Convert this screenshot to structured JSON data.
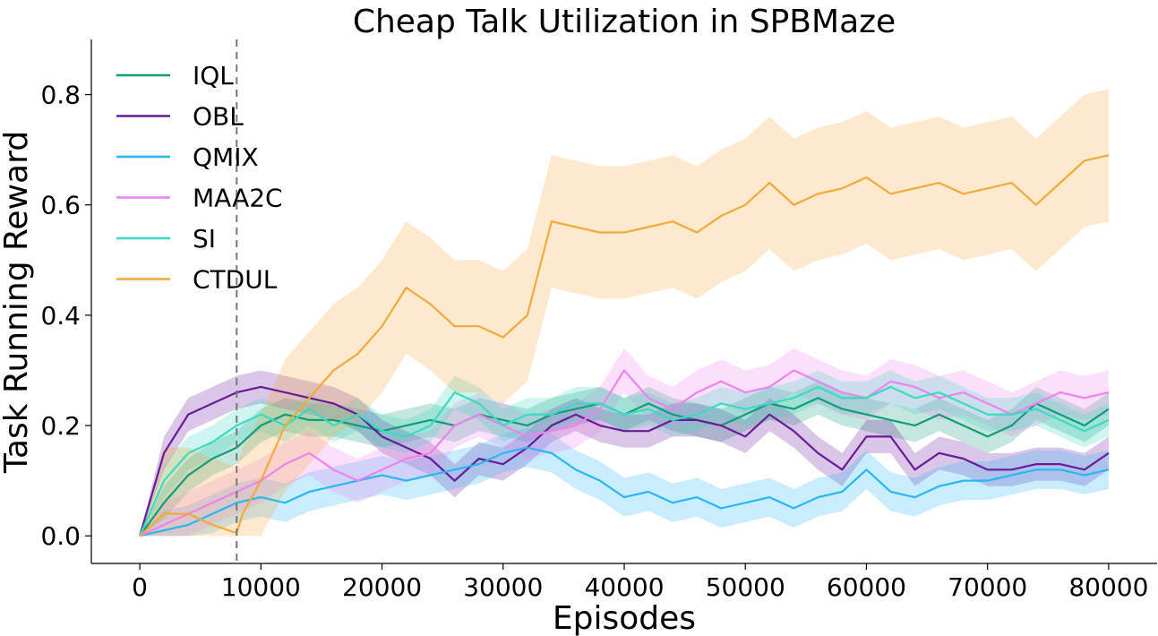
{
  "chart_data": {
    "type": "line",
    "title": "Cheap Talk Utilization in SPBMaze",
    "xlabel": "Episodes",
    "ylabel": "Task Running Reward",
    "xlim": [
      -4000,
      84000
    ],
    "ylim": [
      -0.05,
      0.9
    ],
    "xticks": [
      0,
      10000,
      20000,
      30000,
      40000,
      50000,
      60000,
      70000,
      80000
    ],
    "xtick_labels": [
      "0",
      "10000",
      "20000",
      "30000",
      "40000",
      "50000",
      "60000",
      "70000",
      "80000"
    ],
    "yticks": [
      0.0,
      0.2,
      0.4,
      0.6,
      0.8
    ],
    "ytick_labels": [
      "0.0",
      "0.2",
      "0.4",
      "0.6",
      "0.8"
    ],
    "vline_x": 8000,
    "legend_position": "top-left",
    "series": [
      {
        "name": "IQL",
        "color": "#0f9d7a",
        "x": [
          0,
          2000,
          4000,
          6000,
          8000,
          10000,
          12000,
          14000,
          16000,
          18000,
          20000,
          22000,
          24000,
          26000,
          28000,
          30000,
          32000,
          34000,
          36000,
          38000,
          40000,
          42000,
          44000,
          46000,
          48000,
          50000,
          52000,
          54000,
          56000,
          58000,
          60000,
          62000,
          64000,
          66000,
          68000,
          70000,
          72000,
          74000,
          76000,
          78000,
          80000
        ],
        "y": [
          0.0,
          0.06,
          0.11,
          0.14,
          0.16,
          0.2,
          0.22,
          0.21,
          0.21,
          0.2,
          0.19,
          0.2,
          0.21,
          0.2,
          0.22,
          0.21,
          0.2,
          0.22,
          0.23,
          0.24,
          0.22,
          0.24,
          0.22,
          0.21,
          0.2,
          0.22,
          0.24,
          0.23,
          0.25,
          0.23,
          0.22,
          0.21,
          0.2,
          0.22,
          0.2,
          0.18,
          0.2,
          0.24,
          0.22,
          0.2,
          0.23
        ],
        "band": 0.03
      },
      {
        "name": "OBL",
        "color": "#6a1b9a",
        "x": [
          0,
          2000,
          4000,
          6000,
          8000,
          10000,
          12000,
          14000,
          16000,
          18000,
          20000,
          22000,
          24000,
          26000,
          28000,
          30000,
          32000,
          34000,
          36000,
          38000,
          40000,
          42000,
          44000,
          46000,
          48000,
          50000,
          52000,
          54000,
          56000,
          58000,
          60000,
          62000,
          64000,
          66000,
          68000,
          70000,
          72000,
          74000,
          76000,
          78000,
          80000
        ],
        "y": [
          0.0,
          0.15,
          0.22,
          0.24,
          0.26,
          0.27,
          0.26,
          0.25,
          0.24,
          0.22,
          0.18,
          0.16,
          0.14,
          0.1,
          0.14,
          0.13,
          0.16,
          0.2,
          0.22,
          0.2,
          0.19,
          0.19,
          0.21,
          0.21,
          0.2,
          0.18,
          0.22,
          0.19,
          0.15,
          0.12,
          0.18,
          0.18,
          0.12,
          0.15,
          0.14,
          0.12,
          0.12,
          0.13,
          0.13,
          0.12,
          0.15
        ],
        "band": 0.03
      },
      {
        "name": "QMIX",
        "color": "#29b6f6",
        "x": [
          0,
          2000,
          4000,
          6000,
          8000,
          10000,
          12000,
          14000,
          16000,
          18000,
          20000,
          22000,
          24000,
          26000,
          28000,
          30000,
          32000,
          34000,
          36000,
          38000,
          40000,
          42000,
          44000,
          46000,
          48000,
          50000,
          52000,
          54000,
          56000,
          58000,
          60000,
          62000,
          64000,
          66000,
          68000,
          70000,
          72000,
          74000,
          76000,
          78000,
          80000
        ],
        "y": [
          0.0,
          0.01,
          0.02,
          0.04,
          0.06,
          0.07,
          0.06,
          0.08,
          0.09,
          0.1,
          0.11,
          0.1,
          0.11,
          0.12,
          0.13,
          0.15,
          0.16,
          0.15,
          0.12,
          0.1,
          0.07,
          0.08,
          0.06,
          0.07,
          0.05,
          0.06,
          0.07,
          0.05,
          0.07,
          0.08,
          0.12,
          0.08,
          0.07,
          0.09,
          0.1,
          0.1,
          0.11,
          0.12,
          0.12,
          0.11,
          0.12
        ],
        "band": 0.035
      },
      {
        "name": "MAA2C",
        "color": "#ee82ee",
        "x": [
          0,
          2000,
          4000,
          6000,
          8000,
          10000,
          12000,
          14000,
          16000,
          18000,
          20000,
          22000,
          24000,
          26000,
          28000,
          30000,
          32000,
          34000,
          36000,
          38000,
          40000,
          42000,
          44000,
          46000,
          48000,
          50000,
          52000,
          54000,
          56000,
          58000,
          60000,
          62000,
          64000,
          66000,
          68000,
          70000,
          72000,
          74000,
          76000,
          78000,
          80000
        ],
        "y": [
          0.0,
          0.02,
          0.04,
          0.06,
          0.08,
          0.1,
          0.13,
          0.15,
          0.12,
          0.1,
          0.12,
          0.14,
          0.15,
          0.2,
          0.22,
          0.2,
          0.18,
          0.19,
          0.2,
          0.23,
          0.3,
          0.25,
          0.23,
          0.26,
          0.28,
          0.26,
          0.27,
          0.3,
          0.28,
          0.26,
          0.25,
          0.28,
          0.27,
          0.25,
          0.26,
          0.24,
          0.22,
          0.24,
          0.26,
          0.25,
          0.26
        ],
        "band": 0.04
      },
      {
        "name": "SI",
        "color": "#3dd9c1",
        "x": [
          0,
          2000,
          4000,
          6000,
          8000,
          10000,
          12000,
          14000,
          16000,
          18000,
          20000,
          22000,
          24000,
          26000,
          28000,
          30000,
          32000,
          34000,
          36000,
          38000,
          40000,
          42000,
          44000,
          46000,
          48000,
          50000,
          52000,
          54000,
          56000,
          58000,
          60000,
          62000,
          64000,
          66000,
          68000,
          70000,
          72000,
          74000,
          76000,
          78000,
          80000
        ],
        "y": [
          0.0,
          0.1,
          0.15,
          0.17,
          0.2,
          0.22,
          0.2,
          0.23,
          0.2,
          0.22,
          0.19,
          0.18,
          0.2,
          0.26,
          0.24,
          0.2,
          0.22,
          0.22,
          0.24,
          0.24,
          0.22,
          0.23,
          0.21,
          0.22,
          0.24,
          0.23,
          0.24,
          0.25,
          0.27,
          0.25,
          0.25,
          0.27,
          0.25,
          0.26,
          0.24,
          0.22,
          0.22,
          0.23,
          0.21,
          0.19,
          0.21
        ],
        "band": 0.03
      },
      {
        "name": "CTDUL",
        "color": "#f4a93c",
        "x": [
          0,
          2000,
          4000,
          6000,
          8000,
          8500,
          10000,
          12000,
          14000,
          16000,
          18000,
          20000,
          22000,
          24000,
          26000,
          28000,
          30000,
          32000,
          34000,
          36000,
          38000,
          40000,
          42000,
          44000,
          46000,
          48000,
          50000,
          52000,
          54000,
          56000,
          58000,
          60000,
          62000,
          64000,
          66000,
          68000,
          70000,
          72000,
          74000,
          76000,
          78000,
          80000
        ],
        "y": [
          0.0,
          0.04,
          0.04,
          0.02,
          0.005,
          0.04,
          0.1,
          0.2,
          0.25,
          0.3,
          0.33,
          0.38,
          0.45,
          0.42,
          0.38,
          0.38,
          0.36,
          0.4,
          0.57,
          0.56,
          0.55,
          0.55,
          0.56,
          0.57,
          0.55,
          0.58,
          0.6,
          0.64,
          0.6,
          0.62,
          0.63,
          0.65,
          0.62,
          0.63,
          0.64,
          0.62,
          0.63,
          0.64,
          0.6,
          0.64,
          0.68,
          0.69
        ],
        "band": 0.12
      }
    ]
  }
}
